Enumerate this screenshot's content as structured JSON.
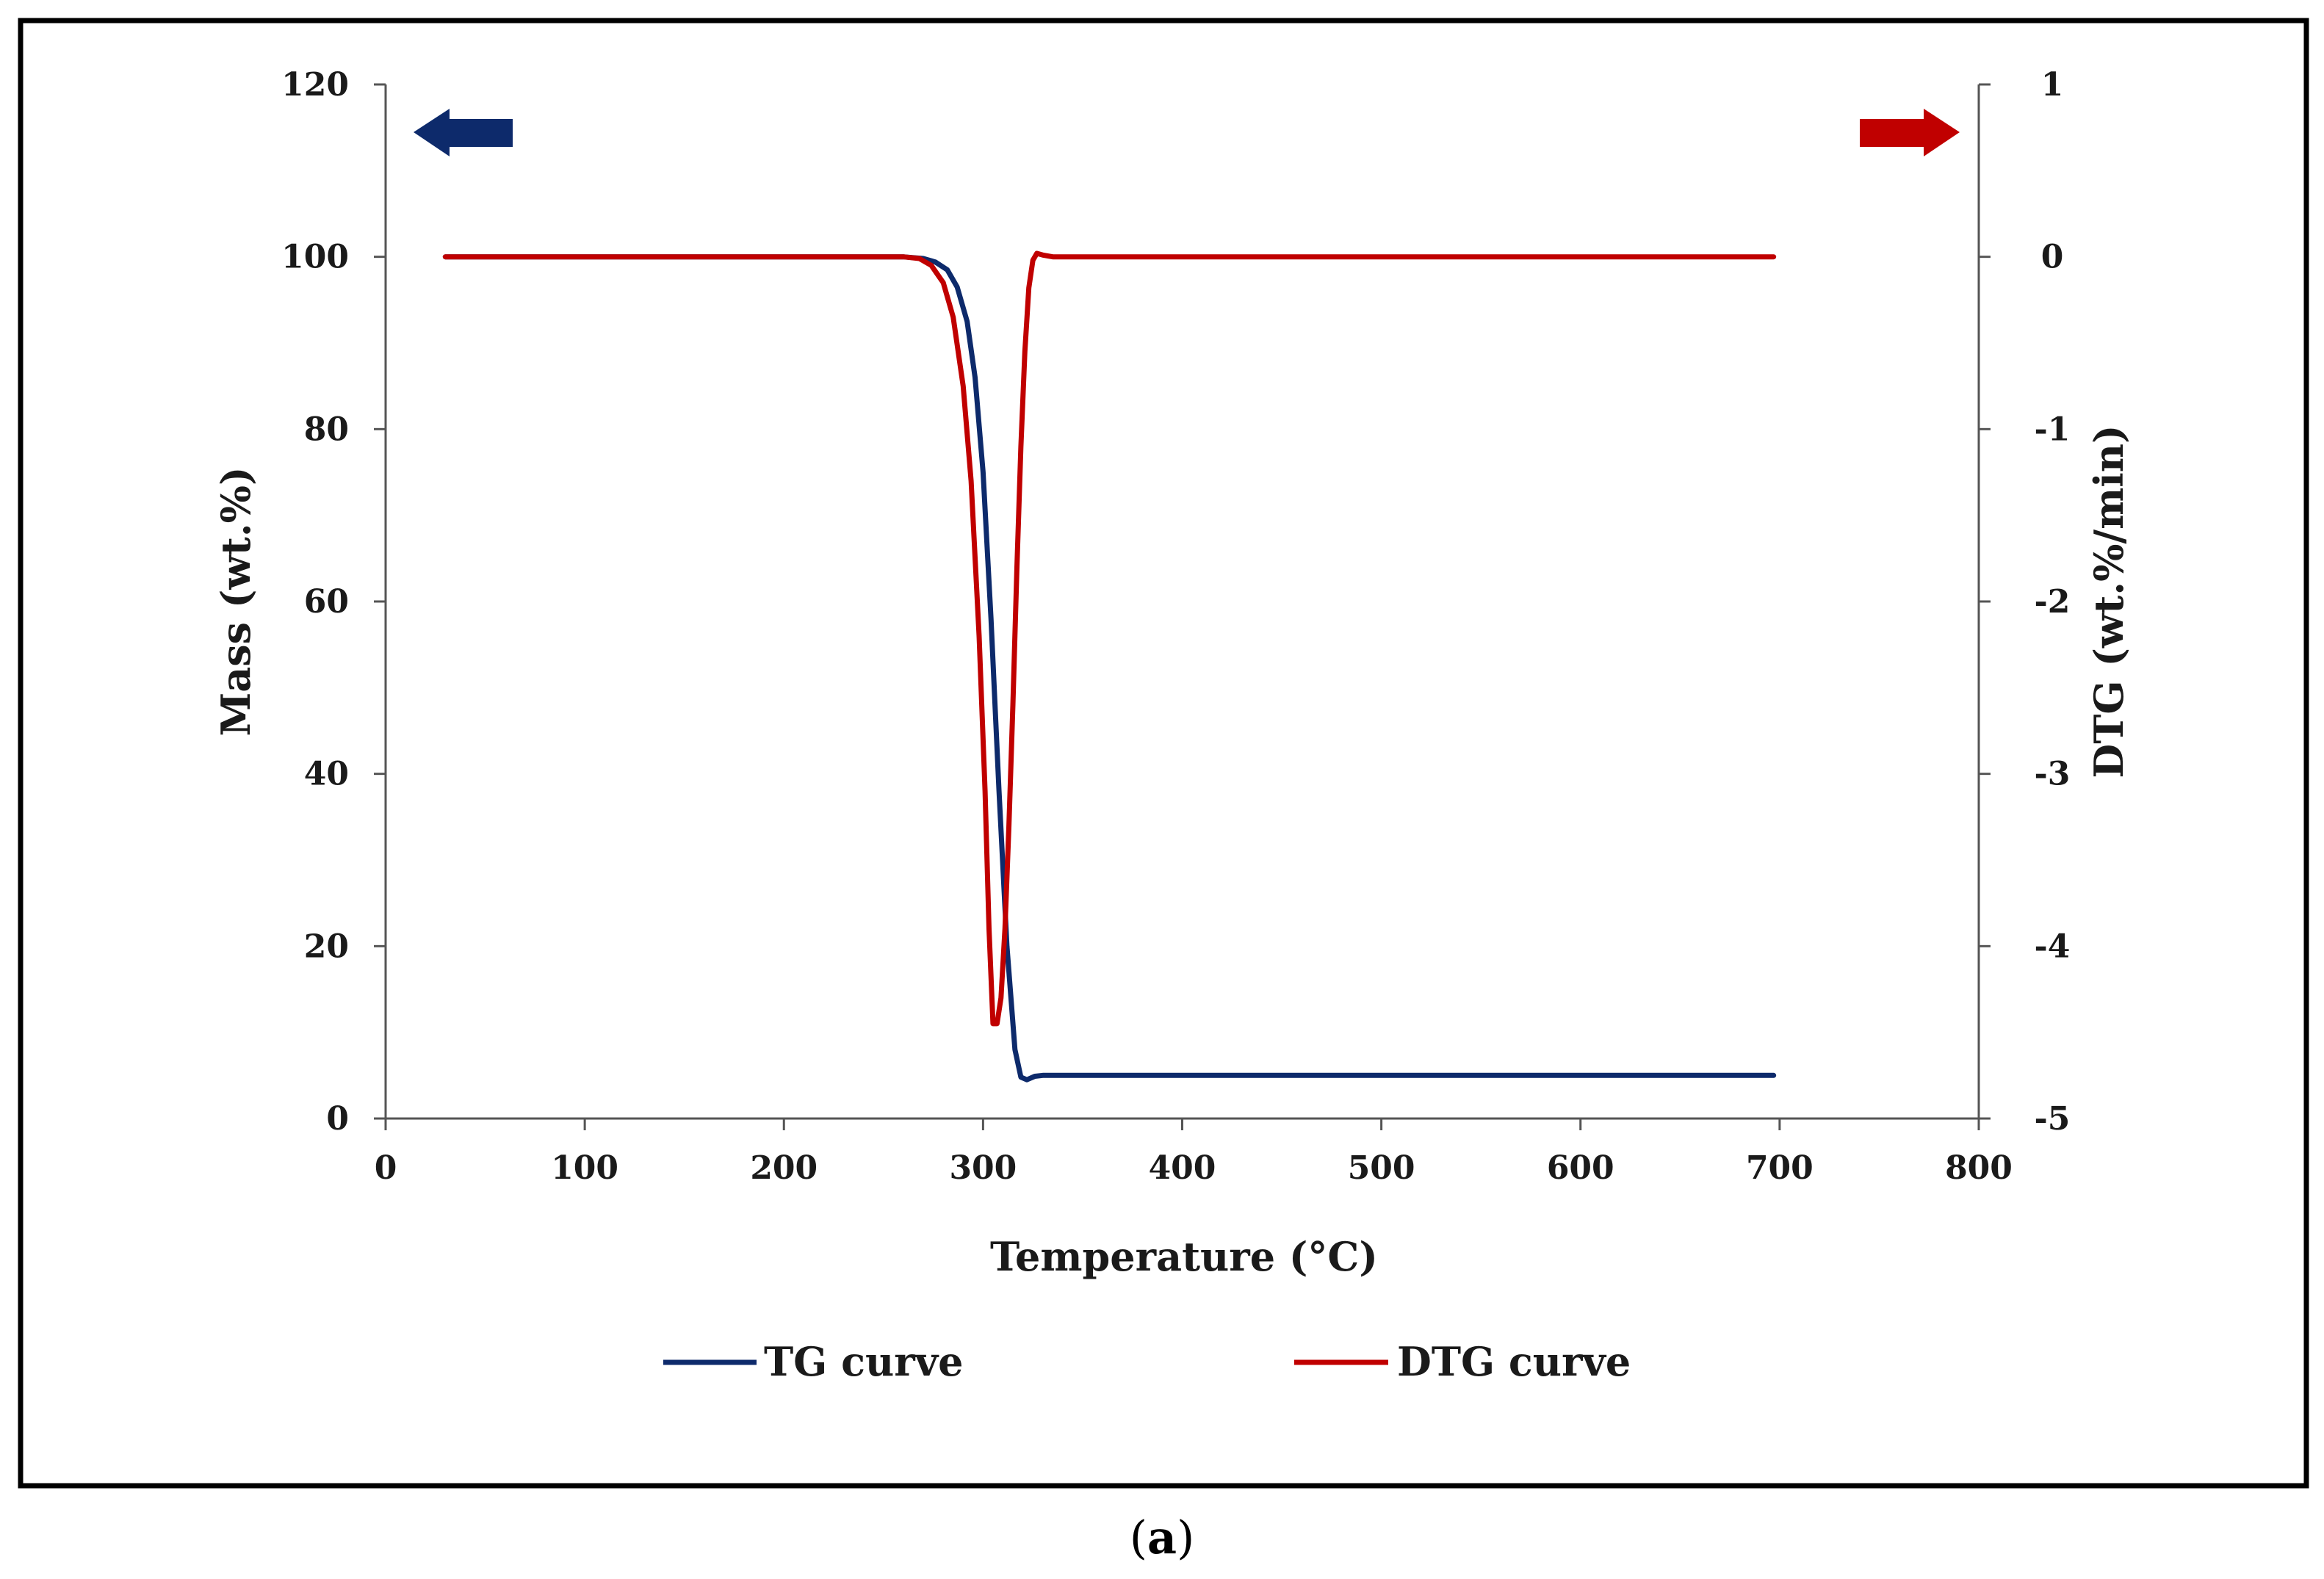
{
  "chart_data": {
    "type": "line",
    "caption": {
      "open": "(",
      "letter": "a",
      "close": ")"
    },
    "xlabel": "Temperature (°C)",
    "ylabel": "Mass (wt.%)",
    "y2label": "DTG (wt.%/min)",
    "xlim": [
      0,
      800
    ],
    "ylim": [
      0,
      120
    ],
    "y2lim": [
      -5,
      1
    ],
    "x_ticks": [
      0,
      100,
      200,
      300,
      400,
      500,
      600,
      700,
      800
    ],
    "x_tick_labels": [
      "0",
      "100",
      "200",
      "300",
      "400",
      "500",
      "600",
      "700",
      "800"
    ],
    "y_ticks": [
      0,
      20,
      40,
      60,
      80,
      100,
      120
    ],
    "y_tick_labels": [
      "0",
      "20",
      "40",
      "60",
      "80",
      "100",
      "120"
    ],
    "y2_ticks": [
      -5,
      -4,
      -3,
      -2,
      -1,
      0,
      1
    ],
    "y2_tick_labels": [
      "-5",
      "-4",
      "-3",
      "-2",
      "-1",
      "0",
      "1"
    ],
    "grid": false,
    "legend_position": "bottom",
    "colors": {
      "tg": "#0d2a6b",
      "dtg": "#c00000",
      "axis": "#555555",
      "frame": "#000000"
    },
    "axis_indicators": [
      {
        "name": "left-axis-arrow-icon",
        "direction": "left",
        "color": "#0d2a6b"
      },
      {
        "name": "right-axis-arrow-icon",
        "direction": "right",
        "color": "#c00000"
      }
    ],
    "series": [
      {
        "name": "TG curve",
        "axis": "left",
        "color": "#0d2a6b",
        "x": [
          30,
          100,
          200,
          260,
          270,
          276,
          282,
          287,
          292,
          296,
          300,
          304,
          308,
          312,
          316,
          319,
          322,
          326,
          330,
          400,
          500,
          600,
          697
        ],
        "y": [
          100,
          100,
          100,
          100,
          99.8,
          99.4,
          98.5,
          96.5,
          92.5,
          86,
          75,
          58,
          38,
          20,
          8,
          4.8,
          4.5,
          4.9,
          5,
          5,
          5,
          5,
          5
        ]
      },
      {
        "name": "DTG curve",
        "axis": "right",
        "color": "#c00000",
        "x": [
          30,
          100,
          200,
          260,
          268,
          274,
          280,
          285,
          290,
          294,
          298,
          301,
          303,
          305,
          307,
          309,
          311,
          313,
          315,
          317,
          319,
          321,
          323,
          325,
          327,
          330,
          335,
          400,
          500,
          600,
          697
        ],
        "y": [
          0,
          0,
          0,
          0,
          -0.01,
          -0.05,
          -0.15,
          -0.35,
          -0.75,
          -1.3,
          -2.2,
          -3.1,
          -3.9,
          -4.45,
          -4.45,
          -4.3,
          -3.9,
          -3.3,
          -2.6,
          -1.8,
          -1.1,
          -0.55,
          -0.18,
          -0.02,
          0.02,
          0.01,
          0,
          0,
          0,
          0,
          0
        ]
      }
    ]
  }
}
